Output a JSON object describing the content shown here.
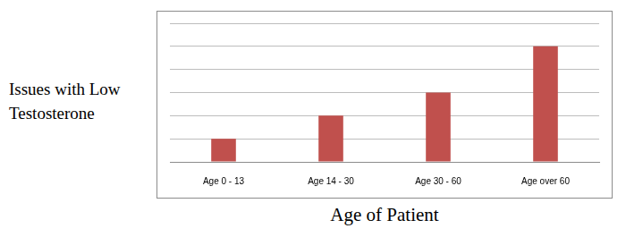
{
  "chart_data": {
    "type": "bar",
    "x_label": "Age of Patient",
    "y_label": "Issues with Low Testosterone",
    "categories": [
      "Age 0 - 13",
      "Age 14 - 30",
      "Age 30 - 60",
      "Age over 60"
    ],
    "values": [
      1,
      2,
      3,
      5
    ],
    "color": "#c0504d",
    "ylim": [
      0,
      6
    ],
    "yticks": [
      0,
      1,
      2,
      3,
      4,
      5,
      6
    ],
    "grid": true,
    "tick_labels": "x"
  }
}
